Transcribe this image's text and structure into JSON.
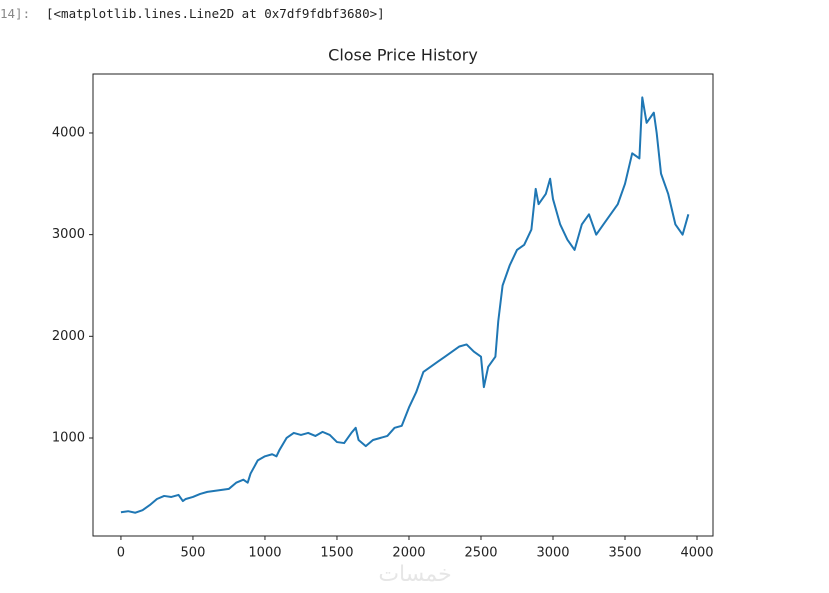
{
  "prompt": "14]:",
  "output_text": "[<matplotlib.lines.Line2D at 0x7df9fdbf3680>]",
  "watermark": "خمسات",
  "chart_data": {
    "type": "line",
    "title": "Close Price History",
    "x": [
      0,
      50,
      100,
      150,
      200,
      250,
      300,
      350,
      400,
      430,
      450,
      500,
      550,
      600,
      650,
      700,
      750,
      800,
      850,
      880,
      900,
      950,
      1000,
      1050,
      1080,
      1100,
      1150,
      1200,
      1250,
      1300,
      1350,
      1400,
      1450,
      1500,
      1550,
      1600,
      1630,
      1650,
      1700,
      1750,
      1800,
      1850,
      1900,
      1950,
      2000,
      2050,
      2100,
      2150,
      2200,
      2250,
      2300,
      2350,
      2400,
      2450,
      2500,
      2520,
      2550,
      2600,
      2620,
      2650,
      2700,
      2750,
      2800,
      2850,
      2880,
      2900,
      2950,
      2980,
      3000,
      3050,
      3100,
      3150,
      3200,
      3250,
      3300,
      3350,
      3400,
      3450,
      3500,
      3550,
      3600,
      3620,
      3650,
      3700,
      3720,
      3750,
      3800,
      3850,
      3900,
      3940
    ],
    "series": [
      {
        "color": "#1f77b4",
        "values": [
          270,
          280,
          265,
          290,
          340,
          400,
          430,
          420,
          440,
          380,
          400,
          420,
          450,
          470,
          480,
          490,
          500,
          560,
          590,
          560,
          650,
          780,
          820,
          840,
          820,
          880,
          1000,
          1050,
          1030,
          1050,
          1020,
          1060,
          1030,
          960,
          950,
          1050,
          1100,
          980,
          920,
          980,
          1000,
          1020,
          1100,
          1120,
          1300,
          1450,
          1650,
          1700,
          1750,
          1800,
          1850,
          1900,
          1920,
          1850,
          1800,
          1500,
          1700,
          1800,
          2150,
          2500,
          2700,
          2850,
          2900,
          3050,
          3450,
          3300,
          3400,
          3550,
          3350,
          3100,
          2950,
          2850,
          3100,
          3200,
          3000,
          3100,
          3200,
          3300,
          3500,
          3800,
          3750,
          4350,
          4100,
          4200,
          4000,
          3600,
          3400,
          3100,
          3000,
          3200
        ]
      }
    ],
    "xlim": [
      -194,
      4111
    ],
    "ylim": [
      36,
      4580
    ],
    "xticks": [
      0,
      500,
      1000,
      1500,
      2000,
      2500,
      3000,
      3500,
      4000
    ],
    "yticks": [
      1000,
      2000,
      3000,
      4000
    ],
    "grid": false
  }
}
